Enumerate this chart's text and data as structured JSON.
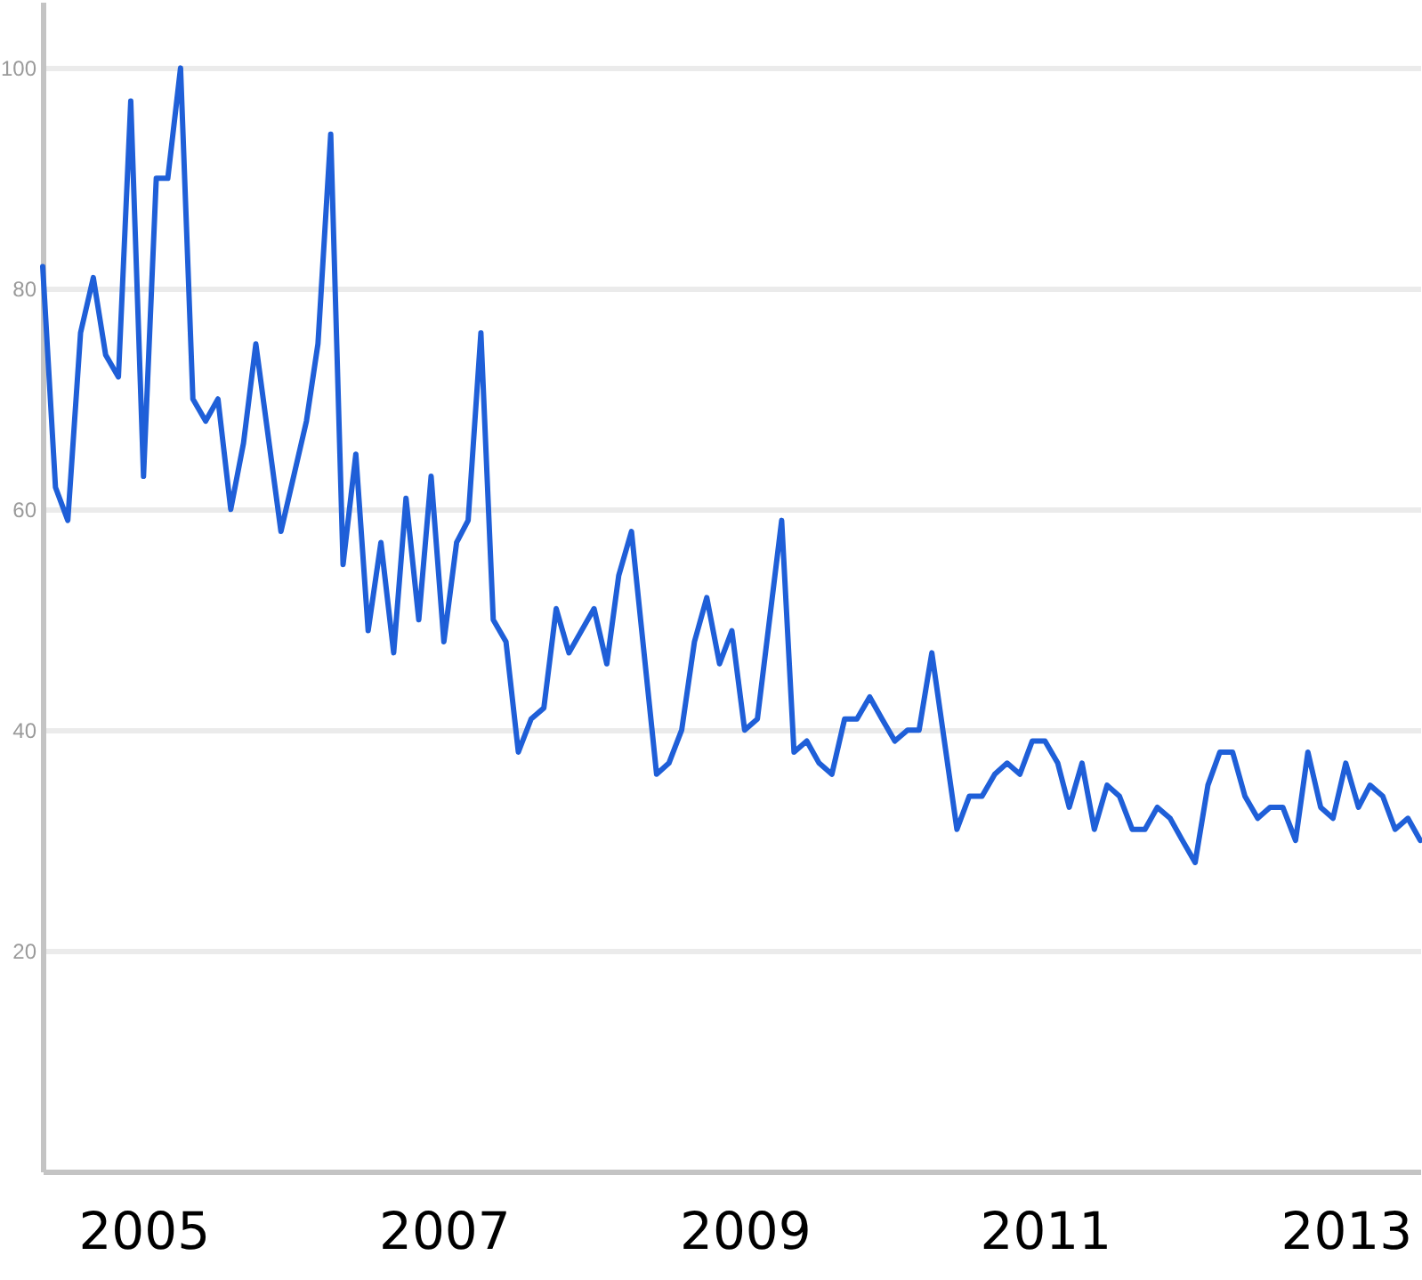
{
  "chart_data": {
    "type": "line",
    "x": [
      "2004-05",
      "2004-06",
      "2004-07",
      "2004-08",
      "2004-09",
      "2004-10",
      "2004-11",
      "2004-12",
      "2005-01",
      "2005-02",
      "2005-03",
      "2005-04",
      "2005-05",
      "2005-06",
      "2005-07",
      "2005-08",
      "2005-09",
      "2005-10",
      "2005-12",
      "2006-02",
      "2006-03",
      "2006-04",
      "2006-05",
      "2006-06",
      "2006-07",
      "2006-08",
      "2006-09",
      "2006-10",
      "2006-11",
      "2006-12",
      "2007-01",
      "2007-02",
      "2007-03",
      "2007-04",
      "2007-05",
      "2007-06",
      "2007-07",
      "2007-08",
      "2007-09",
      "2007-10",
      "2007-11",
      "2008-01",
      "2008-02",
      "2008-03",
      "2008-04",
      "2008-06",
      "2008-07",
      "2008-08",
      "2008-09",
      "2008-10",
      "2008-11",
      "2008-12",
      "2009-01",
      "2009-02",
      "2009-04",
      "2009-05",
      "2009-06",
      "2009-07",
      "2009-08",
      "2009-09",
      "2009-10",
      "2009-11",
      "2009-12",
      "2010-01",
      "2010-02",
      "2010-03",
      "2010-04",
      "2010-06",
      "2010-07",
      "2010-08",
      "2010-09",
      "2010-10",
      "2010-11",
      "2010-12",
      "2011-01",
      "2011-02",
      "2011-03",
      "2011-04",
      "2011-05",
      "2011-06",
      "2011-07",
      "2011-08",
      "2011-09",
      "2011-10",
      "2011-11",
      "2011-12",
      "2012-01",
      "2012-02",
      "2012-03",
      "2012-04",
      "2012-05",
      "2012-06",
      "2012-07",
      "2012-08",
      "2012-09",
      "2012-10",
      "2012-11",
      "2012-12",
      "2013-01",
      "2013-02",
      "2013-03",
      "2013-04",
      "2013-05",
      "2013-06",
      "2013-07"
    ],
    "series": [
      {
        "color": "#1f5fd8",
        "values": [
          82,
          62,
          59,
          76,
          81,
          74,
          72,
          97,
          63,
          90,
          90,
          100,
          70,
          68,
          70,
          60,
          66,
          75,
          58,
          68,
          75,
          94,
          55,
          65,
          49,
          57,
          47,
          61,
          50,
          63,
          48,
          57,
          59,
          76,
          50,
          48,
          38,
          41,
          42,
          51,
          47,
          51,
          46,
          54,
          58,
          36,
          37,
          40,
          48,
          52,
          46,
          49,
          40,
          41,
          59,
          38,
          39,
          37,
          36,
          41,
          41,
          43,
          41,
          39,
          40,
          40,
          47,
          31,
          34,
          34,
          36,
          37,
          36,
          39,
          39,
          37,
          33,
          37,
          31,
          35,
          34,
          31,
          31,
          33,
          32,
          30,
          28,
          35,
          38,
          38,
          34,
          32,
          33,
          33,
          30,
          38,
          33,
          32,
          37,
          33,
          35,
          34,
          31,
          32,
          30
        ]
      }
    ],
    "xlim": [
      "2004-05",
      "2013-07"
    ],
    "ylim": [
      0,
      106
    ],
    "xticks": [
      "2005",
      "2007",
      "2009",
      "2011",
      "2013"
    ],
    "yticks": [
      20,
      40,
      60,
      80,
      100
    ],
    "grid": "y",
    "marker": "none",
    "line_style": "solid"
  }
}
